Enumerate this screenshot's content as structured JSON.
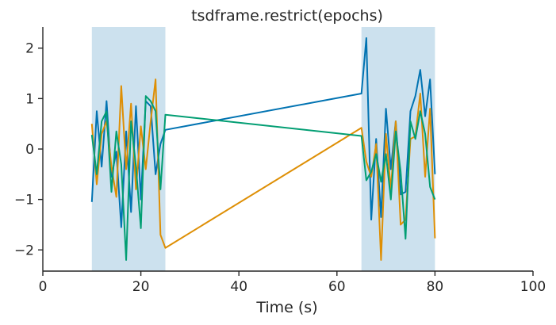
{
  "chart_data": {
    "type": "line",
    "title": "tsdframe.restrict(epochs)",
    "xlabel": "Time (s)",
    "ylabel": "",
    "xlim": [
      0,
      100
    ],
    "ylim": [
      -2.42,
      2.42
    ],
    "x_ticks": [
      0,
      20,
      40,
      60,
      80,
      100
    ],
    "y_ticks": [
      -2,
      -1,
      0,
      1,
      2
    ],
    "x_tick_labels": [
      "0",
      "20",
      "40",
      "60",
      "80",
      "100"
    ],
    "y_tick_labels": [
      "−2",
      "−1",
      "0",
      "1",
      "2"
    ],
    "grid": false,
    "legend": "none",
    "epochs": [
      {
        "start": 10,
        "end": 25
      },
      {
        "start": 65,
        "end": 80
      }
    ],
    "epoch_color": "#cce1ee",
    "x": [
      10,
      11,
      12,
      13,
      14,
      15,
      16,
      17,
      18,
      19,
      20,
      21,
      22,
      23,
      24,
      25,
      65,
      66,
      67,
      68,
      69,
      70,
      71,
      72,
      73,
      74,
      75,
      76,
      77,
      78,
      79,
      80
    ],
    "series": [
      {
        "color": "#0173b2",
        "values": [
          -1.05,
          0.75,
          -0.35,
          0.95,
          -0.55,
          -0.05,
          -1.55,
          0.35,
          -1.25,
          0.85,
          -1.0,
          0.95,
          0.85,
          -0.5,
          0.1,
          0.38,
          1.1,
          2.2,
          -1.4,
          0.2,
          -1.35,
          0.8,
          -0.4,
          0.55,
          -0.9,
          -0.85,
          0.75,
          1.05,
          1.57,
          0.65,
          1.38,
          -0.5
        ]
      },
      {
        "color": "#de8f05",
        "values": [
          0.5,
          -0.7,
          0.3,
          0.55,
          -0.35,
          -0.95,
          1.25,
          -0.4,
          0.9,
          -0.8,
          0.45,
          -0.4,
          0.55,
          1.38,
          -1.7,
          -1.96,
          0.42,
          -0.25,
          -0.55,
          0.1,
          -2.2,
          0.3,
          -0.8,
          0.55,
          -1.5,
          -1.4,
          0.2,
          0.25,
          1.1,
          -0.55,
          0.8,
          -1.77
        ]
      },
      {
        "color": "#029e73",
        "values": [
          0.28,
          -0.5,
          0.55,
          0.75,
          -0.85,
          0.35,
          -0.3,
          -2.2,
          0.55,
          -0.35,
          -1.57,
          1.05,
          0.95,
          0.75,
          -0.8,
          0.68,
          0.26,
          -0.62,
          -0.45,
          -0.1,
          -0.65,
          -0.1,
          -1.0,
          0.35,
          -0.45,
          -1.78,
          0.55,
          0.2,
          0.75,
          0.3,
          -0.75,
          -1.0
        ]
      }
    ]
  }
}
